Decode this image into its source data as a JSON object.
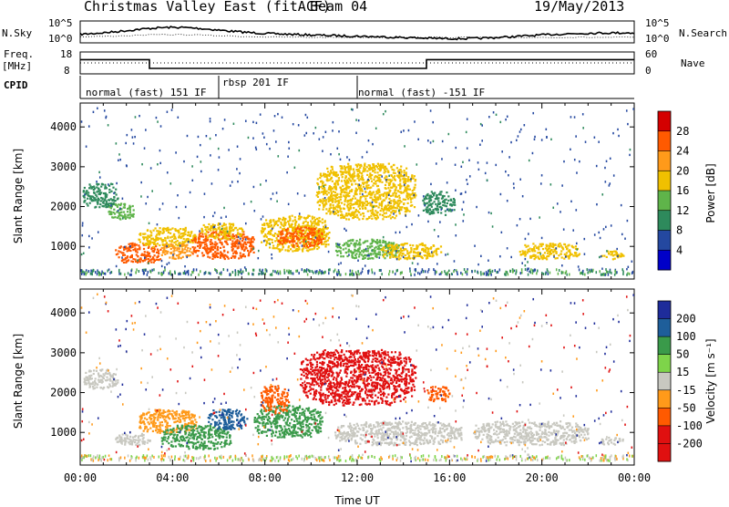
{
  "header": {
    "title": "Christmas Valley East (fitACF)",
    "beam": "Beam 04",
    "date": "19/May/2013"
  },
  "sky_panel": {
    "left_label": "N.Sky",
    "right_label": "N.Search",
    "tick_top": "10^5",
    "tick_bottom": "10^0"
  },
  "freq_panel": {
    "left_label_1": "Freq.",
    "left_label_2": "[MHz]",
    "tick_top": "18",
    "tick_bottom": "8",
    "right_label": "Nave",
    "right_tick_top": "60",
    "right_tick_bottom": "0"
  },
  "cpid_panel": {
    "label": "CPID",
    "segments": [
      {
        "text": "normal (fast) 151 IF",
        "start_hour": 0
      },
      {
        "text": "rbsp 201 IF",
        "start_hour": 6
      },
      {
        "text": "normal (fast) -151 IF",
        "start_hour": 12
      }
    ]
  },
  "power_panel": {
    "ylabel": "Slant Range [km]",
    "cb_label": "Power [dB]",
    "cb_ticks": [
      "28",
      "24",
      "20",
      "16",
      "12",
      "8",
      "4"
    ],
    "cb_colors": [
      "#d40000",
      "#ff5a00",
      "#ff9a1a",
      "#f0c000",
      "#5fb44a",
      "#2e8a5c",
      "#2448a0",
      "#0000c8"
    ]
  },
  "velocity_panel": {
    "ylabel": "Slant Range [km]",
    "cb_label": "Velocity [m s⁻¹]",
    "cb_ticks": [
      "200",
      "100",
      "50",
      "15",
      "-15",
      "-50",
      "-100",
      "-200"
    ],
    "cb_colors": [
      "#1e2c9a",
      "#1e5e9a",
      "#3a9a4a",
      "#7ed44a",
      "#c8c8c0",
      "#ff9a1a",
      "#ff5a00",
      "#e01010",
      "#e01010"
    ]
  },
  "y_ticks": [
    "4000",
    "3000",
    "2000",
    "1000"
  ],
  "x_ticks": [
    "00:00",
    "04:00",
    "08:00",
    "12:00",
    "16:00",
    "20:00",
    "00:00"
  ],
  "xlabel": "Time UT",
  "chart_data": {
    "type": "heatmap",
    "title": "Christmas Valley East (fitACF) Beam 04 19/May/2013",
    "xlabel": "Time UT",
    "ylabel": "Slant Range [km]",
    "xlim_hours": [
      0,
      24
    ],
    "ylim_km": [
      180,
      4600
    ],
    "freq_mhz": [
      {
        "from_hour": 0,
        "to_hour": 3.0,
        "value": 14.5
      },
      {
        "from_hour": 3.0,
        "to_hour": 15.0,
        "value": 10.5
      },
      {
        "from_hour": 15.0,
        "to_hour": 24,
        "value": 14.5
      }
    ],
    "power_regions": [
      {
        "t0": 0.1,
        "t1": 1.6,
        "r0": 2000,
        "r1": 2600,
        "value_db": 8
      },
      {
        "t0": 1.2,
        "t1": 2.3,
        "r0": 1700,
        "r1": 2100,
        "value_db": 12
      },
      {
        "t0": 1.5,
        "t1": 3.5,
        "r0": 600,
        "r1": 1100,
        "value_db": 26
      },
      {
        "t0": 2.5,
        "t1": 5.0,
        "r0": 1000,
        "r1": 1500,
        "value_db": 16
      },
      {
        "t0": 3.5,
        "t1": 4.8,
        "r0": 700,
        "r1": 1100,
        "value_db": 20
      },
      {
        "t0": 4.8,
        "t1": 7.5,
        "r0": 700,
        "r1": 1400,
        "value_db": 26
      },
      {
        "t0": 5.2,
        "t1": 7.0,
        "r0": 1200,
        "r1": 1600,
        "value_db": 16
      },
      {
        "t0": 7.8,
        "t1": 10.8,
        "r0": 900,
        "r1": 1800,
        "value_db": 16
      },
      {
        "t0": 8.5,
        "t1": 10.5,
        "r0": 1000,
        "r1": 1500,
        "value_db": 24
      },
      {
        "t0": 10.2,
        "t1": 14.5,
        "r0": 1700,
        "r1": 3100,
        "value_db": 16
      },
      {
        "t0": 11.0,
        "t1": 13.8,
        "r0": 700,
        "r1": 1200,
        "value_db": 12
      },
      {
        "t0": 13.0,
        "t1": 15.6,
        "r0": 700,
        "r1": 1100,
        "value_db": 16
      },
      {
        "t0": 14.8,
        "t1": 16.2,
        "r0": 1800,
        "r1": 2400,
        "value_db": 8
      },
      {
        "t0": 19.0,
        "t1": 21.6,
        "r0": 700,
        "r1": 1100,
        "value_db": 16
      },
      {
        "t0": 22.5,
        "t1": 23.5,
        "r0": 700,
        "r1": 900,
        "value_db": 16
      }
    ],
    "velocity_regions": [
      {
        "t0": 0.1,
        "t1": 1.6,
        "r0": 2100,
        "r1": 2600,
        "value_ms": 0
      },
      {
        "t0": 1.5,
        "t1": 3.0,
        "r0": 700,
        "r1": 1000,
        "value_ms": 0
      },
      {
        "t0": 2.5,
        "t1": 5.0,
        "r0": 1000,
        "r1": 1600,
        "value_ms": -50
      },
      {
        "t0": 3.5,
        "t1": 6.5,
        "r0": 600,
        "r1": 1200,
        "value_ms": 40
      },
      {
        "t0": 5.5,
        "t1": 7.2,
        "r0": 1100,
        "r1": 1600,
        "value_ms": 100
      },
      {
        "t0": 7.5,
        "t1": 10.5,
        "r0": 900,
        "r1": 1700,
        "value_ms": 40
      },
      {
        "t0": 7.8,
        "t1": 9.0,
        "r0": 1500,
        "r1": 2200,
        "value_ms": -100
      },
      {
        "t0": 9.5,
        "t1": 14.5,
        "r0": 1700,
        "r1": 3100,
        "value_ms": -200
      },
      {
        "t0": 11.0,
        "t1": 16.5,
        "r0": 700,
        "r1": 1300,
        "value_ms": 0
      },
      {
        "t0": 15.0,
        "t1": 16.0,
        "r0": 1800,
        "r1": 2200,
        "value_ms": -100
      },
      {
        "t0": 17.0,
        "t1": 22.0,
        "r0": 700,
        "r1": 1300,
        "value_ms": 0
      },
      {
        "t0": 22.5,
        "t1": 23.5,
        "r0": 700,
        "r1": 900,
        "value_ms": 0
      }
    ]
  }
}
